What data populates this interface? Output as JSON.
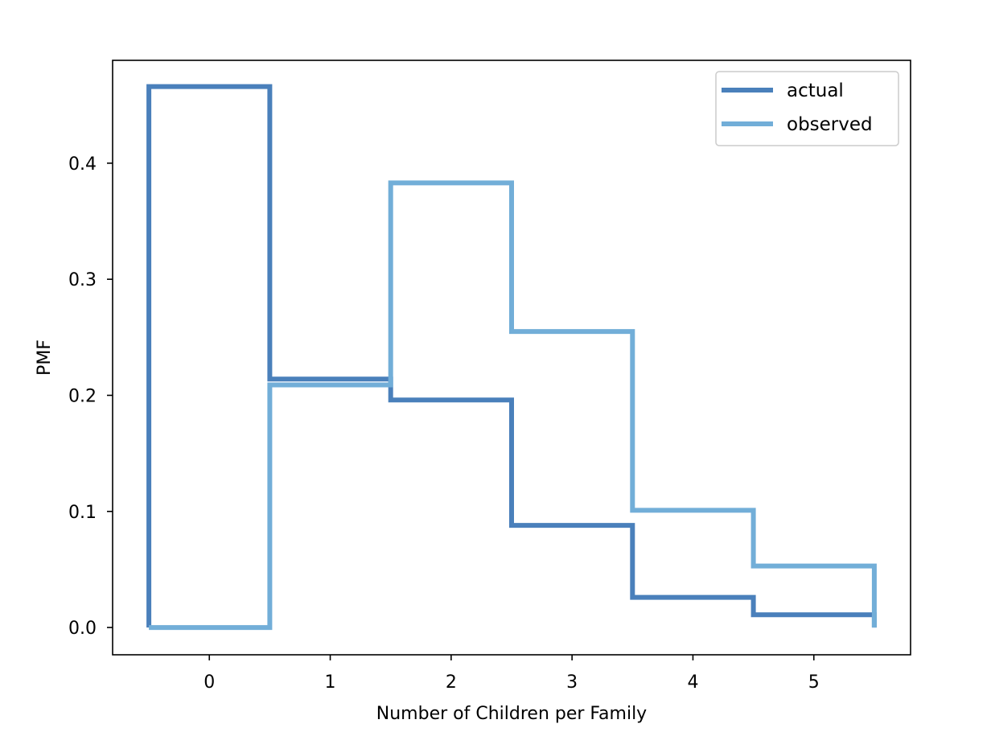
{
  "chart_data": {
    "type": "step",
    "xlabel": "Number of Children per Family",
    "ylabel": "PMF",
    "xlim": [
      -0.8,
      5.8
    ],
    "ylim": [
      -0.0235,
      0.4886
    ],
    "x_ticks": [
      "0",
      "1",
      "2",
      "3",
      "4",
      "5"
    ],
    "y_ticks": [
      "0.0",
      "0.1",
      "0.2",
      "0.3",
      "0.4"
    ],
    "x_tick_values": [
      0,
      1,
      2,
      3,
      4,
      5
    ],
    "y_tick_values": [
      0.0,
      0.1,
      0.2,
      0.3,
      0.4
    ],
    "legend_position": "top-right",
    "grid": false,
    "series": [
      {
        "name": "actual",
        "color": "#4a80bb",
        "x": [
          0,
          1,
          2,
          3,
          4,
          5
        ],
        "values": [
          0.466,
          0.214,
          0.196,
          0.088,
          0.026,
          0.011
        ]
      },
      {
        "name": "observed",
        "color": "#72aed8",
        "x": [
          0,
          1,
          2,
          3,
          4,
          5
        ],
        "values": [
          0.0,
          0.209,
          0.383,
          0.255,
          0.101,
          0.053
        ]
      }
    ]
  }
}
